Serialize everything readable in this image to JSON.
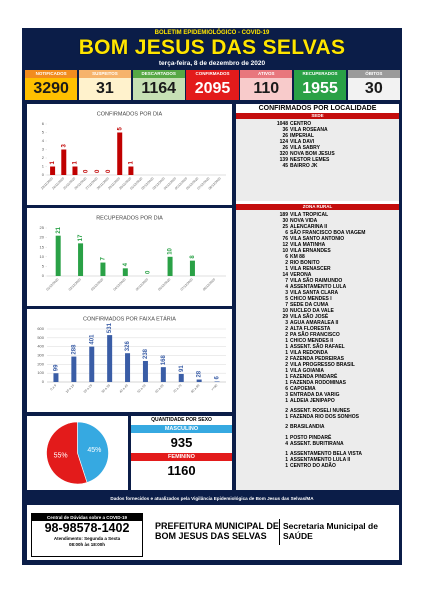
{
  "header": {
    "kicker": "BOLETIM EPIDEMIOLÓGICO - COVID-19",
    "title": "BOM JESUS DAS SELVAS",
    "date": "terça-feira, 8 de dezembro de 2020"
  },
  "stats": [
    {
      "label": "NOTIFICADOS",
      "value": 3290
    },
    {
      "label": "SUSPEITOS",
      "value": 31
    },
    {
      "label": "DESCARTADOS",
      "value": 1164
    },
    {
      "label": "CONFIRMADOS",
      "value": 2095
    },
    {
      "label": "ATIVOS",
      "value": 110
    },
    {
      "label": "RECUPERADOS",
      "value": 1955
    },
    {
      "label": "ÓBITOS",
      "value": 30
    }
  ],
  "chart_data": [
    {
      "type": "bar",
      "title": "CONFIRMADOS POR DIA",
      "categories": [
        "23/11/2020",
        "24/11/2020",
        "25/11/2020",
        "26/11/2020",
        "27/11/2020",
        "28/11/2020",
        "29/11/2020",
        "30/11/2020",
        "01/12/2020",
        "02/12/2020",
        "03/12/2020",
        "04/12/2020",
        "05/12/2020",
        "06/12/2020",
        "07/12/2020",
        "08/12/2020"
      ],
      "values": [
        1,
        3,
        1,
        0,
        0,
        0,
        5,
        1,
        null,
        null,
        null,
        null,
        null,
        null,
        null,
        null
      ],
      "color": "#c00000",
      "ylim": [
        0,
        6
      ],
      "yticks": [
        0,
        1,
        2,
        3,
        4,
        5,
        6
      ],
      "grid": false,
      "data_labels": true
    },
    {
      "type": "bar",
      "title": "RECUPERADOS POR DIA",
      "categories": [
        "01/12/2020",
        "02/12/2020",
        "03/12/2020",
        "04/12/2020",
        "05/12/2020",
        "06/12/2020",
        "07/12/2020",
        "08/12/2020"
      ],
      "values": [
        21,
        17,
        7,
        4,
        0,
        10,
        8,
        null
      ],
      "color": "#2aa146",
      "ylim": [
        0,
        25
      ],
      "yticks": [
        0,
        5,
        10,
        15,
        20,
        25
      ],
      "grid": false,
      "data_labels": true
    },
    {
      "type": "bar",
      "title": "CONFIRMADOS POR FAIXA ETÁRIA",
      "categories": [
        "0 a 9",
        "10 a 19",
        "20 a 29",
        "30 a 39",
        "40 a 49",
        "50 a 59",
        "60 a 69",
        "70 a 79",
        "80 a 89",
        ">=90"
      ],
      "values": [
        99,
        288,
        401,
        531,
        326,
        238,
        168,
        91,
        28,
        6
      ],
      "color": "#3a5da6",
      "ylim": [
        0,
        600
      ],
      "yticks": [
        0,
        100,
        200,
        300,
        400,
        500,
        600
      ],
      "grid": true,
      "data_labels": true
    },
    {
      "type": "pie",
      "values": [
        55,
        45
      ],
      "value_labels": [
        "55%",
        "45%"
      ],
      "colors": [
        "#e31b1b",
        "#36a9e1"
      ]
    }
  ],
  "sex": {
    "title": "QUANTIDADE POR SEXO",
    "male_label": "MASCULINO",
    "male": 935,
    "female_label": "FEMININO",
    "female": 1160
  },
  "localidades": {
    "title": "CONFIRMADOS POR LOCALIDADE",
    "sede": {
      "label": "SEDE",
      "rows": [
        {
          "count": 1048,
          "name": "CENTRO"
        },
        {
          "count": 36,
          "name": "VILA ROSEANA"
        },
        {
          "count": 26,
          "name": "IMPERIAL"
        },
        {
          "count": 124,
          "name": "VILA DAVI"
        },
        {
          "count": 26,
          "name": "VILA SABRY"
        },
        {
          "count": 320,
          "name": "NOVA BOM JESUS"
        },
        {
          "count": 139,
          "name": "NESTOR LEMES"
        },
        {
          "count": 45,
          "name": "BAIRRO JK"
        }
      ]
    },
    "zona_rural": {
      "label": "ZONA RURAL",
      "groups": [
        [
          {
            "count": 189,
            "name": "VILA TROPICAL"
          },
          {
            "count": 30,
            "name": "NOVA VIDA"
          },
          {
            "count": 25,
            "name": "ALENCARINA II"
          },
          {
            "count": 6,
            "name": "SÃO FRANCISCO BOA VIAGEM"
          },
          {
            "count": 76,
            "name": "VILA SANTO ANTONIO"
          },
          {
            "count": 12,
            "name": "VILA MATINHA"
          },
          {
            "count": 10,
            "name": "VILA ERNANDES"
          },
          {
            "count": 6,
            "name": "KM 88"
          },
          {
            "count": 2,
            "name": "RIO BONITO"
          },
          {
            "count": 1,
            "name": "VILA RENASCER"
          },
          {
            "count": 14,
            "name": "VERONA"
          },
          {
            "count": 7,
            "name": "VILA SÃO RAIMUNDO"
          },
          {
            "count": 4,
            "name": "ASSENTAMENTO LULA"
          },
          {
            "count": 3,
            "name": "VILA SANTA CLARA"
          },
          {
            "count": 5,
            "name": "CHICO MENDES I"
          },
          {
            "count": 7,
            "name": "SEDE DA CUMA"
          },
          {
            "count": 10,
            "name": "NUCLEO DA VALE"
          },
          {
            "count": 29,
            "name": "VILA SÃO JOSÉ"
          },
          {
            "count": 3,
            "name": "AGUA AMARALEA II"
          },
          {
            "count": 2,
            "name": "ALTA FLORESTA"
          },
          {
            "count": 2,
            "name": "PA SÃO FRANCISCO"
          },
          {
            "count": 1,
            "name": "CHICO MENDES II"
          },
          {
            "count": 1,
            "name": "ASSENT. SÃO RAFAEL"
          },
          {
            "count": 1,
            "name": "VILA REDONDA"
          },
          {
            "count": 2,
            "name": "FAZENDA PEDREIRAS"
          },
          {
            "count": 2,
            "name": "VILA PROGRESSO BRASIL"
          },
          {
            "count": 1,
            "name": "VILA GOIANIA"
          },
          {
            "count": 1,
            "name": "FAZENDA PINDARÉ"
          },
          {
            "count": 1,
            "name": "FAZENDA RODOMINAS"
          },
          {
            "count": 6,
            "name": "CAPOEMA"
          },
          {
            "count": 3,
            "name": "ENTRADA DA VARIG"
          },
          {
            "count": 1,
            "name": "ALDEIA JENIPAPO"
          }
        ],
        [
          {
            "count": 2,
            "name": "ASSENT. ROSELI NUNES"
          },
          {
            "count": 1,
            "name": "FAZENDA RIO DOS SONHOS"
          }
        ],
        [
          {
            "count": 2,
            "name": "BRASILANDIA"
          }
        ],
        [
          {
            "count": 1,
            "name": "POSTO PINDARÉ"
          },
          {
            "count": 4,
            "name": "ASSENT. BURITIRANA"
          }
        ],
        [
          {
            "count": 1,
            "name": "ASSENTAMENTO BELA VISTA"
          },
          {
            "count": 1,
            "name": "ASSENTAMENTO LULA II"
          },
          {
            "count": 1,
            "name": "CENTRO DO ADÃO"
          }
        ]
      ]
    }
  },
  "footer": {
    "source": "Dados fornecidos e atualizados pela Vigilância Epidemiológica de Bom Jesus das Selvas/MA",
    "help_title": "Central de Dúvidas sobre a COVID-19",
    "phone": "98-98578-1402",
    "hours_1": "Atendimento: Segunda a Sexta",
    "hours_2": "08:00h às 18:00h",
    "pref_1": "PREFEITURA MUNICIPAL DE",
    "pref_2": "BOM JESUS DAS SELVAS",
    "sec_1": "Secretaria Municipal de",
    "sec_2": "SAÚDE"
  }
}
